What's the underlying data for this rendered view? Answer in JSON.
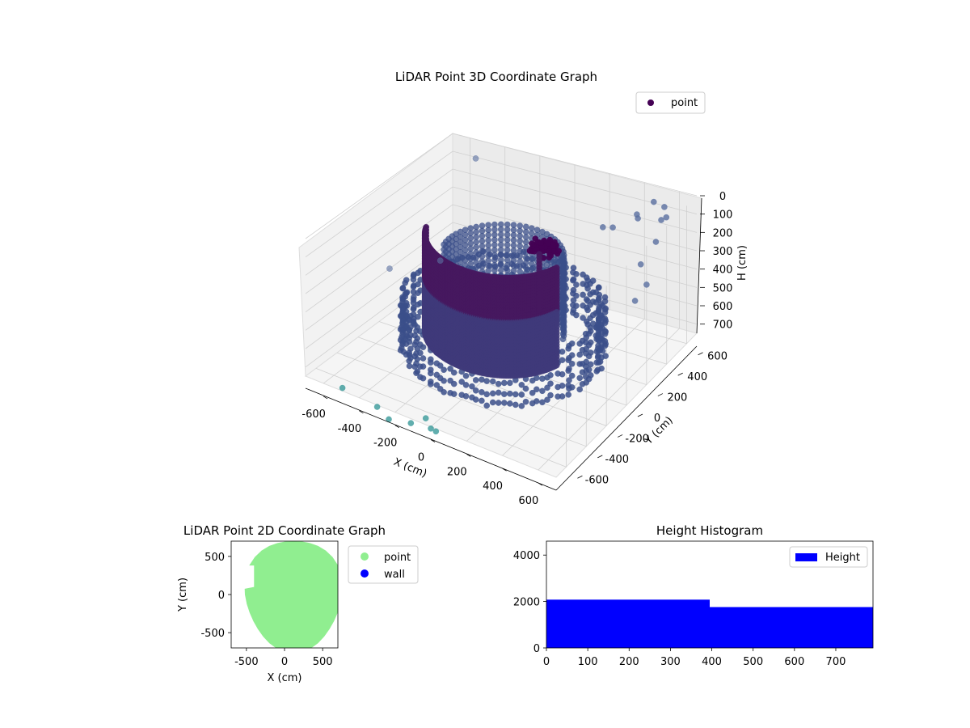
{
  "chart_data": [
    {
      "type": "scatter",
      "title": "LiDAR Point 3D Coordinate Graph",
      "xlabel": "X (cm)",
      "ylabel": "Y (cm)",
      "zlabel": "H (cm)",
      "xlim": [
        -700,
        700
      ],
      "ylim": [
        -700,
        700
      ],
      "zlim": [
        750,
        0
      ],
      "x_ticks": [
        "-600",
        "-400",
        "-200",
        "0",
        "200",
        "400",
        "600"
      ],
      "y_ticks": [
        "-600",
        "-400",
        "-200",
        "0",
        "200",
        "400",
        "600"
      ],
      "z_ticks": [
        "0",
        "100",
        "200",
        "300",
        "400",
        "500",
        "600",
        "700"
      ],
      "legend": {
        "entries": [
          "point"
        ],
        "placement": "top-right"
      },
      "series": [
        {
          "name": "point",
          "color_map": "viridis",
          "colors": {
            "cylinder": "#46185f",
            "lower_ring": "#3b4f8a",
            "scatter_high": "#5a6fa0",
            "scatter_low": "#3a9a9a",
            "dark": "#440154"
          },
          "structures": [
            {
              "shape": "cylinder_wall",
              "center": [
                0,
                0
              ],
              "radius": 380,
              "angle_span_deg": [
                200,
                340
              ],
              "z_range": [
                50,
                600
              ]
            },
            {
              "shape": "outer_ring",
              "center": [
                0,
                0
              ],
              "radius": 480,
              "z_range": [
                400,
                700
              ]
            },
            {
              "shape": "inner_columns",
              "center": [
                0,
                0
              ],
              "radius": 280,
              "z_range": [
                150,
                600
              ]
            },
            {
              "shape": "top_cluster",
              "center": [
                120,
                150
              ],
              "z": 150
            }
          ]
        }
      ],
      "grid": true
    },
    {
      "type": "scatter",
      "title": "LiDAR Point 2D Coordinate Graph",
      "xlabel": "X (cm)",
      "ylabel": "Y (cm)",
      "xlim": [
        -700,
        700
      ],
      "ylim": [
        -700,
        700
      ],
      "x_ticks": [
        "-500",
        "0",
        "500"
      ],
      "y_ticks": [
        "-500",
        "0",
        "500"
      ],
      "legend": {
        "entries": [
          "point",
          "wall"
        ],
        "placement": "outside-right"
      },
      "series": [
        {
          "name": "point",
          "color": "#90ee90"
        },
        {
          "name": "wall",
          "color": "#0000ff"
        }
      ]
    },
    {
      "type": "bar",
      "title": "Height Histogram",
      "xlabel": "",
      "ylabel": "",
      "xlim": [
        0,
        790
      ],
      "ylim": [
        0,
        4600
      ],
      "x_ticks": [
        "0",
        "100",
        "200",
        "300",
        "400",
        "500",
        "600",
        "700"
      ],
      "y_ticks": [
        "0",
        "2000",
        "4000"
      ],
      "legend": {
        "entries": [
          "Height"
        ],
        "placement": "top-right"
      },
      "series": [
        {
          "name": "Height",
          "color": "#0000ff",
          "bins": [
            {
              "from": 0,
              "to": 395,
              "count": 2080
            },
            {
              "from": 395,
              "to": 790,
              "count": 1760
            }
          ]
        }
      ]
    }
  ]
}
